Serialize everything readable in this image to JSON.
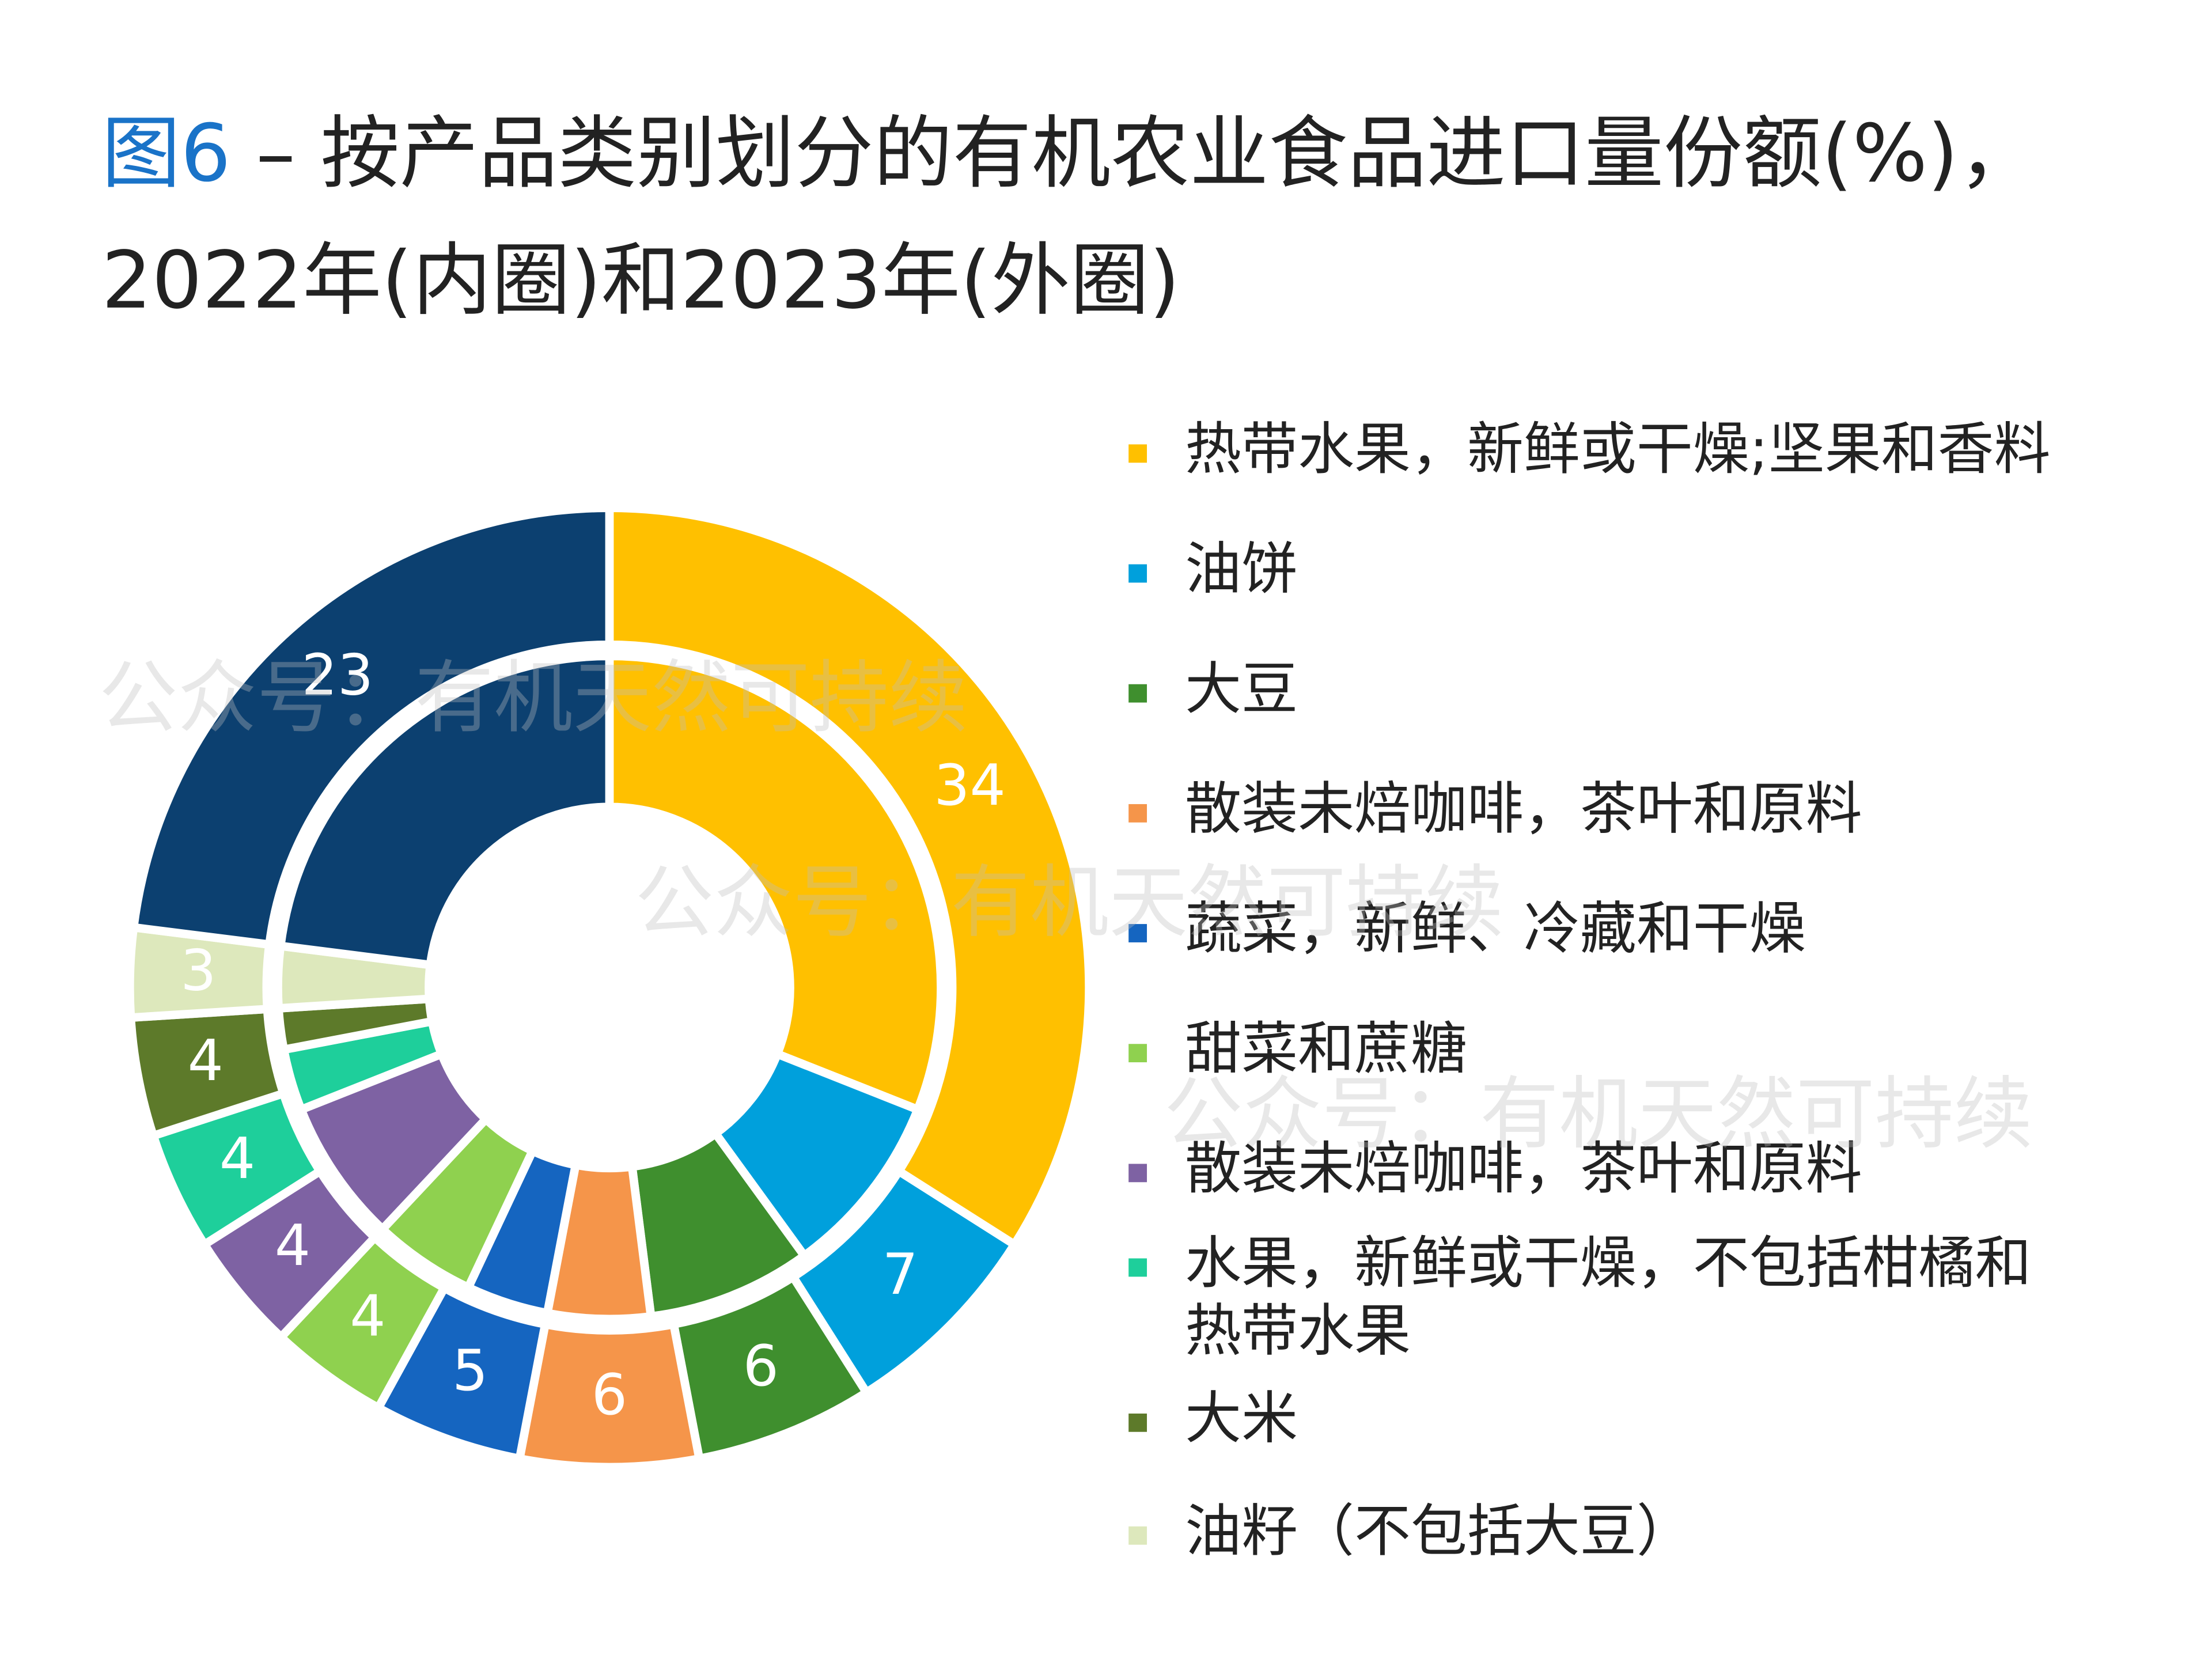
{
  "chart_data": {
    "type": "donut",
    "title_prefix": "图6",
    "title": " – 按产品类别划分的有机农业食品进口量份额(%)，",
    "subtitle": "2022年(内圈)和2023年(外圈)",
    "watermark": "公众号：有机天然可持续",
    "categories": [
      "热带水果，新鲜或干燥;坚果和香料",
      "油饼",
      "大豆",
      "散装未焙咖啡，茶叶和原料",
      "蔬菜，新鲜、冷藏和干燥",
      "甜菜和蔗糖",
      "散装未焙咖啡，茶叶和原料",
      "水果，新鲜或干燥，不包括柑橘和热带水果",
      "大米",
      "油籽（不包括大豆）",
      null
    ],
    "colors": [
      "#ffc000",
      "#00a0dc",
      "#3f8f2e",
      "#f5954a",
      "#1565c0",
      "#8fd14f",
      "#7e62a3",
      "#1ecf9b",
      "#5d7a2a",
      "#dde8bc",
      "#0c4070"
    ],
    "series": [
      {
        "values": [
          31,
          9,
          8,
          5,
          4,
          5,
          7,
          3,
          2,
          3,
          23
        ]
      },
      {
        "values": [
          34,
          7,
          6,
          6,
          5,
          4,
          4,
          4,
          4,
          3,
          23
        ]
      }
    ]
  }
}
